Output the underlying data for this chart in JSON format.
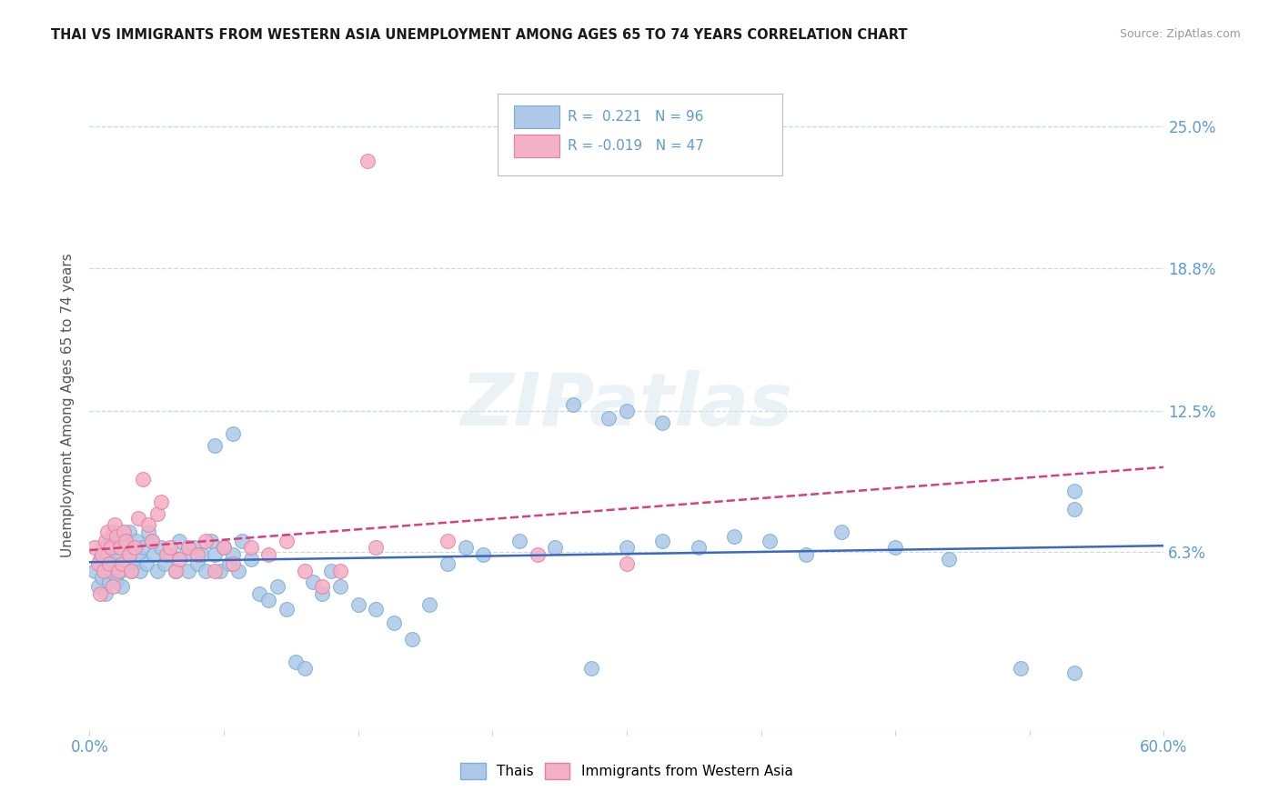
{
  "title": "THAI VS IMMIGRANTS FROM WESTERN ASIA UNEMPLOYMENT AMONG AGES 65 TO 74 YEARS CORRELATION CHART",
  "source": "Source: ZipAtlas.com",
  "ylabel": "Unemployment Among Ages 65 to 74 years",
  "xlim": [
    0.0,
    0.6
  ],
  "ylim": [
    -0.015,
    0.27
  ],
  "yticks": [
    0.063,
    0.125,
    0.188,
    0.25
  ],
  "ytick_labels": [
    "6.3%",
    "12.5%",
    "18.8%",
    "25.0%"
  ],
  "xtick_positions": [
    0.0,
    0.075,
    0.15,
    0.225,
    0.3,
    0.375,
    0.45,
    0.525,
    0.6
  ],
  "xtick_labels_show": [
    "0.0%",
    "",
    "",
    "",
    "",
    "",
    "",
    "",
    "60.0%"
  ],
  "blue_color": "#adc8e8",
  "blue_edge": "#7aafd4",
  "pink_color": "#f4b0c5",
  "pink_edge": "#e87fa0",
  "trend_blue": "#3a6abf",
  "trend_pink": "#d44080",
  "axis_color": "#5b9bd5",
  "grid_color": "#c8d8ea",
  "watermark": "ZIPatlas",
  "legend_R_blue": "0.221",
  "legend_N_blue": "96",
  "legend_R_pink": "-0.019",
  "legend_N_pink": "47",
  "blue_x": [
    0.003,
    0.005,
    0.006,
    0.007,
    0.008,
    0.009,
    0.01,
    0.01,
    0.011,
    0.012,
    0.012,
    0.013,
    0.014,
    0.015,
    0.015,
    0.016,
    0.017,
    0.018,
    0.018,
    0.019,
    0.02,
    0.021,
    0.022,
    0.022,
    0.023,
    0.024,
    0.025,
    0.026,
    0.027,
    0.028,
    0.03,
    0.032,
    0.033,
    0.035,
    0.036,
    0.038,
    0.04,
    0.042,
    0.045,
    0.048,
    0.05,
    0.053,
    0.055,
    0.058,
    0.06,
    0.063,
    0.065,
    0.068,
    0.07,
    0.073,
    0.075,
    0.078,
    0.08,
    0.083,
    0.085,
    0.09,
    0.095,
    0.1,
    0.105,
    0.11,
    0.115,
    0.12,
    0.125,
    0.13,
    0.135,
    0.14,
    0.15,
    0.16,
    0.17,
    0.18,
    0.19,
    0.2,
    0.21,
    0.22,
    0.24,
    0.26,
    0.28,
    0.3,
    0.32,
    0.34,
    0.36,
    0.38,
    0.4,
    0.42,
    0.45,
    0.48,
    0.52,
    0.55,
    0.3,
    0.32,
    0.07,
    0.08,
    0.27,
    0.29,
    0.55,
    0.55
  ],
  "blue_y": [
    0.055,
    0.048,
    0.06,
    0.052,
    0.065,
    0.045,
    0.058,
    0.062,
    0.05,
    0.055,
    0.068,
    0.072,
    0.058,
    0.065,
    0.05,
    0.062,
    0.055,
    0.068,
    0.048,
    0.058,
    0.065,
    0.058,
    0.072,
    0.062,
    0.055,
    0.065,
    0.058,
    0.068,
    0.062,
    0.055,
    0.065,
    0.058,
    0.072,
    0.068,
    0.062,
    0.055,
    0.065,
    0.058,
    0.062,
    0.055,
    0.068,
    0.062,
    0.055,
    0.065,
    0.058,
    0.062,
    0.055,
    0.068,
    0.062,
    0.055,
    0.065,
    0.058,
    0.062,
    0.055,
    0.068,
    0.06,
    0.045,
    0.042,
    0.048,
    0.038,
    0.015,
    0.012,
    0.05,
    0.045,
    0.055,
    0.048,
    0.04,
    0.038,
    0.032,
    0.025,
    0.04,
    0.058,
    0.065,
    0.062,
    0.068,
    0.065,
    0.012,
    0.125,
    0.12,
    0.065,
    0.07,
    0.068,
    0.062,
    0.072,
    0.065,
    0.06,
    0.012,
    0.01,
    0.065,
    0.068,
    0.11,
    0.115,
    0.128,
    0.122,
    0.082,
    0.09
  ],
  "pink_x": [
    0.003,
    0.005,
    0.006,
    0.007,
    0.008,
    0.009,
    0.01,
    0.011,
    0.012,
    0.013,
    0.014,
    0.015,
    0.016,
    0.017,
    0.018,
    0.019,
    0.02,
    0.022,
    0.023,
    0.025,
    0.027,
    0.03,
    0.033,
    0.035,
    0.038,
    0.04,
    0.043,
    0.045,
    0.048,
    0.05,
    0.055,
    0.06,
    0.065,
    0.07,
    0.075,
    0.08,
    0.09,
    0.1,
    0.11,
    0.12,
    0.13,
    0.14,
    0.16,
    0.2,
    0.25,
    0.3,
    0.155
  ],
  "pink_y": [
    0.065,
    0.058,
    0.045,
    0.062,
    0.055,
    0.068,
    0.072,
    0.058,
    0.065,
    0.048,
    0.075,
    0.07,
    0.055,
    0.065,
    0.058,
    0.072,
    0.068,
    0.062,
    0.055,
    0.065,
    0.078,
    0.095,
    0.075,
    0.068,
    0.08,
    0.085,
    0.062,
    0.065,
    0.055,
    0.06,
    0.065,
    0.062,
    0.068,
    0.055,
    0.065,
    0.058,
    0.065,
    0.062,
    0.068,
    0.055,
    0.048,
    0.055,
    0.065,
    0.068,
    0.062,
    0.058,
    0.235
  ]
}
